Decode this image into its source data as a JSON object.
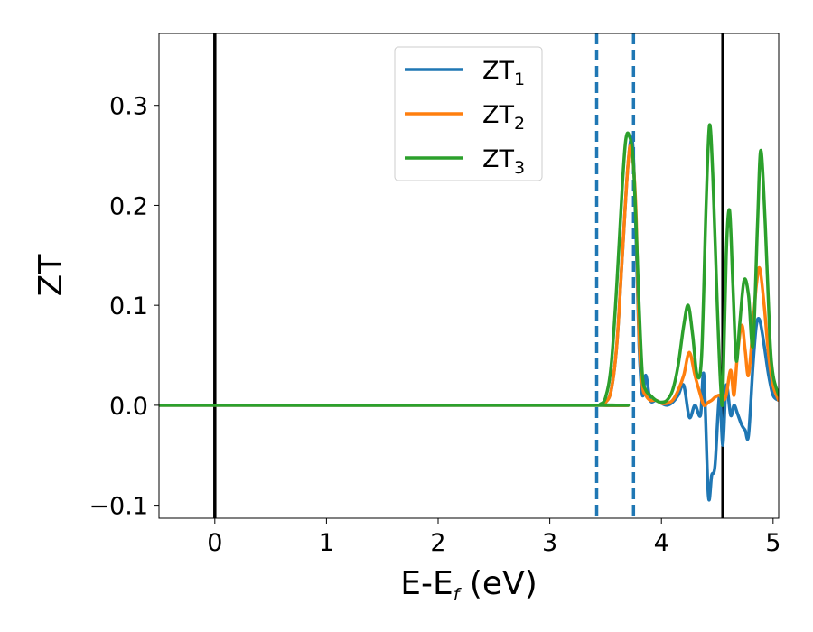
{
  "chart_data": {
    "type": "line",
    "title": "",
    "xlabel": "E-E",
    "xlabel_sub": "f",
    "xlabel_unit": " (eV)",
    "ylabel": "ZT",
    "xlim": [
      -0.5,
      5.05
    ],
    "ylim": [
      -0.113,
      0.372
    ],
    "x_ticks": [
      0,
      1,
      2,
      3,
      4,
      5
    ],
    "x_tick_labels": [
      "0",
      "1",
      "2",
      "3",
      "4",
      "5"
    ],
    "y_ticks": [
      -0.1,
      0.0,
      0.1,
      0.2,
      0.3
    ],
    "y_tick_labels": [
      "−0.1",
      "0.0",
      "0.1",
      "0.2",
      "0.3"
    ],
    "grid": false,
    "legend": "upper-center",
    "vlines": [
      {
        "x": 0.0,
        "style": "solid",
        "color": "#000000"
      },
      {
        "x": 3.42,
        "style": "dashed",
        "color": "#1f77b4"
      },
      {
        "x": 3.75,
        "style": "dashed",
        "color": "#1f77b4"
      },
      {
        "x": 4.55,
        "style": "solid",
        "color": "#000000"
      }
    ],
    "series": [
      {
        "name": "ZT",
        "name_sub": "1",
        "color": "#1f77b4",
        "x": [
          -0.5,
          3.4,
          3.45,
          3.5,
          3.55,
          3.6,
          3.65,
          3.7,
          3.74,
          3.77,
          3.8,
          3.83,
          3.86,
          3.9,
          3.95,
          4.0,
          4.05,
          4.1,
          4.15,
          4.2,
          4.25,
          4.3,
          4.35,
          4.38,
          4.42,
          4.45,
          4.48,
          4.52,
          4.55,
          4.58,
          4.62,
          4.65,
          4.68,
          4.72,
          4.75,
          4.78,
          4.82,
          4.85,
          4.88,
          4.92,
          4.96,
          5.0,
          5.05
        ],
        "y": [
          0.0,
          0.0,
          0.0,
          0.003,
          0.015,
          0.06,
          0.15,
          0.24,
          0.265,
          0.18,
          0.06,
          0.01,
          0.03,
          0.005,
          0.005,
          0.002,
          0.0,
          0.003,
          0.01,
          0.02,
          -0.012,
          0.0,
          -0.01,
          0.03,
          -0.09,
          -0.07,
          -0.06,
          0.01,
          -0.04,
          0.02,
          -0.01,
          0.0,
          -0.008,
          -0.02,
          -0.025,
          -0.03,
          0.04,
          0.08,
          0.085,
          0.06,
          0.03,
          0.01,
          0.005
        ]
      },
      {
        "name": "ZT",
        "name_sub": "2",
        "color": "#ff7f0e",
        "x": [
          -0.5,
          3.4,
          3.45,
          3.5,
          3.55,
          3.6,
          3.65,
          3.7,
          3.73,
          3.77,
          3.8,
          3.83,
          3.86,
          3.9,
          3.95,
          4.0,
          4.05,
          4.1,
          4.15,
          4.2,
          4.25,
          4.3,
          4.35,
          4.38,
          4.42,
          4.45,
          4.48,
          4.52,
          4.55,
          4.58,
          4.62,
          4.65,
          4.68,
          4.72,
          4.75,
          4.78,
          4.82,
          4.85,
          4.88,
          4.92,
          4.96,
          5.0,
          5.05
        ],
        "y": [
          0.0,
          0.0,
          0.0,
          0.003,
          0.015,
          0.06,
          0.15,
          0.24,
          0.257,
          0.2,
          0.07,
          0.02,
          0.01,
          0.005,
          0.005,
          0.002,
          0.002,
          0.005,
          0.015,
          0.03,
          0.053,
          0.03,
          0.01,
          0.0,
          0.003,
          0.005,
          0.008,
          0.01,
          0.005,
          0.01,
          0.035,
          0.01,
          0.05,
          0.08,
          0.055,
          0.03,
          0.08,
          0.12,
          0.137,
          0.1,
          0.05,
          0.02,
          0.005
        ]
      },
      {
        "name": "ZT",
        "name_sub": "3",
        "color": "#2ca02c",
        "x": [
          -0.5,
          3.4,
          3.45,
          3.5,
          3.55,
          3.6,
          3.65,
          3.68,
          3.71,
          3.75,
          3.8,
          3.83,
          3.86,
          3.9,
          3.95,
          4.0,
          4.05,
          4.1,
          4.15,
          4.2,
          4.24,
          4.28,
          4.32,
          4.36,
          4.4,
          4.43,
          4.46,
          4.5,
          4.53,
          4.55,
          4.58,
          4.61,
          4.64,
          4.67,
          4.7,
          4.74,
          4.78,
          4.82,
          4.86,
          4.89,
          4.93,
          4.97,
          5.0,
          5.05
        ],
        "y": [
          0.0,
          0.0,
          0.001,
          0.008,
          0.04,
          0.12,
          0.22,
          0.265,
          0.27,
          0.24,
          0.1,
          0.03,
          0.015,
          0.01,
          0.005,
          0.003,
          0.005,
          0.015,
          0.04,
          0.08,
          0.1,
          0.07,
          0.03,
          0.05,
          0.2,
          0.28,
          0.23,
          0.1,
          0.02,
          0.01,
          0.15,
          0.195,
          0.12,
          0.045,
          0.08,
          0.125,
          0.11,
          0.06,
          0.18,
          0.255,
          0.18,
          0.07,
          0.03,
          0.01
        ]
      }
    ]
  }
}
